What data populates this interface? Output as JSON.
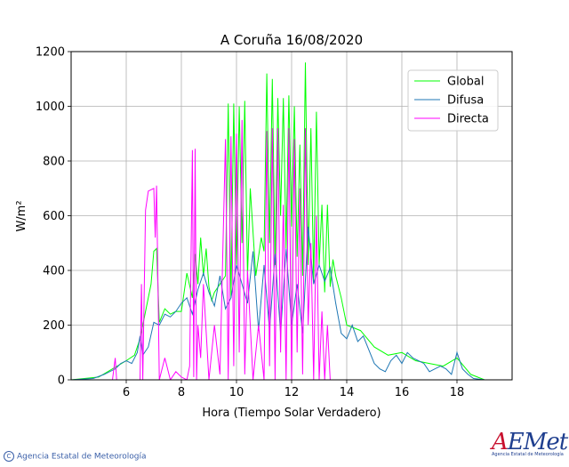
{
  "chart_data": {
    "type": "line",
    "title": "A Coruña 16/08/2020",
    "xlabel": "Hora (Tiempo Solar Verdadero)",
    "ylabel": "W/m²",
    "xlim": [
      4,
      20
    ],
    "ylim": [
      0,
      1200
    ],
    "xticks": [
      6,
      8,
      10,
      12,
      14,
      16,
      18
    ],
    "yticks": [
      0,
      200,
      400,
      600,
      800,
      1000,
      1200
    ],
    "grid": true,
    "legend_position": "top-right",
    "series": [
      {
        "name": "Global",
        "color": "#00ff00",
        "x": [
          4,
          5,
          5.5,
          6,
          6.3,
          6.5,
          6.7,
          6.9,
          7.0,
          7.1,
          7.2,
          7.4,
          7.6,
          7.8,
          8.0,
          8.2,
          8.4,
          8.5,
          8.6,
          8.7,
          8.8,
          8.9,
          9.0,
          9.1,
          9.2,
          9.4,
          9.6,
          9.7,
          9.8,
          9.9,
          10.0,
          10.1,
          10.2,
          10.3,
          10.4,
          10.5,
          10.7,
          10.9,
          11.0,
          11.1,
          11.2,
          11.3,
          11.4,
          11.5,
          11.6,
          11.7,
          11.8,
          11.9,
          12.0,
          12.1,
          12.2,
          12.3,
          12.4,
          12.5,
          12.6,
          12.7,
          12.8,
          12.9,
          13.0,
          13.1,
          13.2,
          13.3,
          13.4,
          13.5,
          13.6,
          13.8,
          14.0,
          14.5,
          15.0,
          15.5,
          16.0,
          16.5,
          17.0,
          17.5,
          18.0,
          18.5,
          19,
          20
        ],
        "y": [
          0,
          10,
          40,
          70,
          90,
          150,
          250,
          350,
          470,
          480,
          210,
          260,
          240,
          250,
          250,
          390,
          300,
          460,
          350,
          520,
          380,
          480,
          340,
          290,
          320,
          350,
          380,
          1010,
          300,
          1010,
          420,
          1000,
          500,
          1020,
          380,
          700,
          380,
          520,
          470,
          1120,
          500,
          1100,
          420,
          1030,
          600,
          1030,
          480,
          1040,
          560,
          1000,
          450,
          860,
          380,
          1160,
          420,
          920,
          360,
          980,
          420,
          640,
          320,
          640,
          340,
          440,
          380,
          300,
          200,
          180,
          120,
          90,
          100,
          70,
          60,
          50,
          80,
          20,
          0,
          0
        ]
      },
      {
        "name": "Difusa",
        "color": "#1f77b4",
        "x": [
          4,
          4.8,
          5.2,
          5.6,
          5.8,
          6.0,
          6.2,
          6.4,
          6.5,
          6.6,
          6.8,
          7.0,
          7.2,
          7.4,
          7.6,
          7.8,
          8.0,
          8.2,
          8.4,
          8.6,
          8.8,
          9.0,
          9.2,
          9.4,
          9.6,
          9.8,
          10.0,
          10.2,
          10.4,
          10.6,
          10.8,
          11.0,
          11.2,
          11.4,
          11.6,
          11.8,
          12.0,
          12.2,
          12.4,
          12.6,
          12.8,
          13.0,
          13.2,
          13.4,
          13.6,
          13.8,
          14.0,
          14.2,
          14.4,
          14.6,
          14.8,
          15.0,
          15.2,
          15.4,
          15.6,
          15.8,
          16.0,
          16.2,
          16.4,
          16.6,
          16.8,
          17.0,
          17.2,
          17.4,
          17.6,
          17.8,
          18.0,
          18.2,
          18.4,
          18.6,
          19,
          20
        ],
        "y": [
          0,
          5,
          20,
          40,
          60,
          70,
          60,
          100,
          160,
          90,
          120,
          210,
          200,
          240,
          230,
          250,
          280,
          300,
          240,
          330,
          390,
          320,
          270,
          380,
          260,
          300,
          420,
          350,
          280,
          470,
          180,
          420,
          180,
          460,
          170,
          480,
          200,
          350,
          170,
          560,
          350,
          420,
          360,
          410,
          280,
          170,
          150,
          200,
          140,
          160,
          110,
          60,
          40,
          30,
          70,
          90,
          60,
          100,
          80,
          70,
          60,
          30,
          40,
          50,
          40,
          20,
          100,
          40,
          20,
          5,
          0,
          0
        ]
      },
      {
        "name": "Directa",
        "color": "#ff00ff",
        "x": [
          4,
          5.5,
          5.6,
          5.65,
          5.7,
          6.0,
          6.5,
          6.55,
          6.6,
          6.7,
          6.8,
          7.0,
          7.05,
          7.1,
          7.2,
          7.4,
          7.6,
          7.8,
          8.0,
          8.2,
          8.3,
          8.4,
          8.45,
          8.5,
          8.55,
          8.6,
          8.7,
          8.8,
          9.0,
          9.2,
          9.4,
          9.6,
          9.7,
          9.8,
          9.9,
          10.0,
          10.1,
          10.2,
          10.3,
          10.4,
          10.6,
          10.8,
          11.0,
          11.1,
          11.2,
          11.3,
          11.4,
          11.5,
          11.6,
          11.7,
          11.8,
          11.9,
          12.0,
          12.1,
          12.2,
          12.3,
          12.4,
          12.5,
          12.6,
          12.7,
          12.8,
          12.9,
          13.0,
          13.1,
          13.2,
          13.3,
          13.4,
          13.6,
          14,
          20
        ],
        "y": [
          0,
          0,
          80,
          0,
          0,
          0,
          0,
          350,
          0,
          620,
          690,
          700,
          520,
          710,
          0,
          80,
          0,
          30,
          10,
          0,
          50,
          840,
          10,
          845,
          0,
          200,
          80,
          350,
          0,
          200,
          20,
          880,
          0,
          890,
          50,
          900,
          100,
          950,
          20,
          400,
          0,
          200,
          0,
          910,
          50,
          920,
          0,
          920,
          100,
          640,
          0,
          920,
          0,
          880,
          100,
          700,
          20,
          920,
          200,
          500,
          0,
          600,
          0,
          250,
          0,
          200,
          0,
          0,
          0,
          0
        ]
      }
    ]
  },
  "footer": {
    "copyright_symbol": "C",
    "agency": "Agencia Estatal de Meteorología",
    "logo_mark_a": "A",
    "logo_mark_rest": "EMet",
    "logo_sub": "Agencia Estatal de Meteorología"
  }
}
